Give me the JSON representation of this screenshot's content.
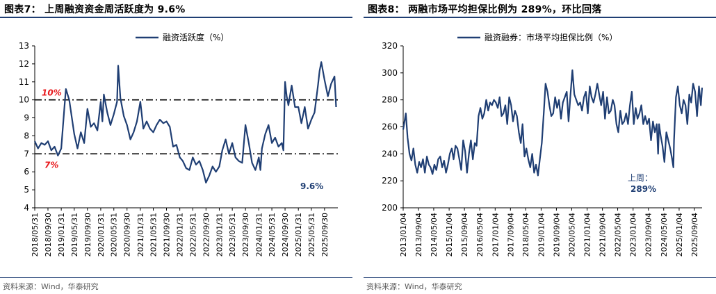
{
  "figures": [
    {
      "title": "图表7：  上周融资资金周活跃度为 9.6%",
      "source": "资料来源：Wind，华泰研究"
    },
    {
      "title": "图表8：  两融市场平均担保比例为 289%，环比回落",
      "source": "资料来源：Wind，华泰研究"
    }
  ],
  "chart_data": [
    {
      "type": "line",
      "title": "",
      "xlabel": "",
      "ylabel": "",
      "ylim": [
        4,
        13
      ],
      "y_ticks": [
        4,
        5,
        6,
        7,
        8,
        9,
        10,
        11,
        12,
        13
      ],
      "x_range": [
        "2018-05-31",
        "2026-01-31"
      ],
      "x_ticks": [
        "2018/05/31",
        "2018/09/30",
        "2019/01/31",
        "2019/05/31",
        "2019/09/30",
        "2020/01/31",
        "2020/05/31",
        "2020/09/30",
        "2021/01/31",
        "2021/05/31",
        "2021/09/30",
        "2022/01/31",
        "2022/05/31",
        "2022/09/30",
        "2023/01/31",
        "2023/05/31",
        "2023/09/30",
        "2024/01/31",
        "2024/05/31",
        "2024/09/30",
        "2025/01/31",
        "2025/05/31",
        "2025/09/30"
      ],
      "legend": "top-center",
      "grid": false,
      "line_color": "#1f3e73",
      "series": [
        {
          "name": "融资活跃度（%）",
          "x": [
            "2018-05-31",
            "2018-06-30",
            "2018-07-31",
            "2018-08-31",
            "2018-09-30",
            "2018-10-31",
            "2018-11-30",
            "2018-12-31",
            "2019-01-31",
            "2019-02-28",
            "2019-03-15",
            "2019-04-15",
            "2019-05-31",
            "2019-06-30",
            "2019-07-31",
            "2019-08-31",
            "2019-09-30",
            "2019-10-31",
            "2019-11-30",
            "2019-12-31",
            "2020-01-31",
            "2020-02-15",
            "2020-02-29",
            "2020-03-31",
            "2020-04-30",
            "2020-05-31",
            "2020-06-30",
            "2020-07-10",
            "2020-07-31",
            "2020-08-31",
            "2020-09-30",
            "2020-10-31",
            "2020-11-30",
            "2020-12-31",
            "2021-01-31",
            "2021-02-28",
            "2021-03-31",
            "2021-04-30",
            "2021-05-31",
            "2021-06-30",
            "2021-07-31",
            "2021-08-31",
            "2021-09-30",
            "2021-10-31",
            "2021-11-30",
            "2021-12-31",
            "2022-01-31",
            "2022-02-28",
            "2022-03-31",
            "2022-04-30",
            "2022-05-31",
            "2022-06-30",
            "2022-07-31",
            "2022-08-31",
            "2022-09-30",
            "2022-10-31",
            "2022-11-30",
            "2022-12-31",
            "2023-01-31",
            "2023-02-28",
            "2023-03-31",
            "2023-04-30",
            "2023-05-31",
            "2023-06-30",
            "2023-07-31",
            "2023-08-31",
            "2023-09-30",
            "2023-10-31",
            "2023-11-30",
            "2023-12-31",
            "2024-01-31",
            "2024-02-15",
            "2024-02-29",
            "2024-03-31",
            "2024-04-30",
            "2024-05-31",
            "2024-06-30",
            "2024-07-31",
            "2024-08-31",
            "2024-09-15",
            "2024-09-30",
            "2024-10-15",
            "2024-10-31",
            "2024-11-30",
            "2024-12-31",
            "2025-01-31",
            "2025-02-28",
            "2025-03-31",
            "2025-04-30",
            "2025-05-31",
            "2025-06-30",
            "2025-07-31",
            "2025-08-15",
            "2025-08-31",
            "2025-09-30",
            "2025-10-31",
            "2025-11-30",
            "2025-12-31",
            "2026-01-15"
          ],
          "values": [
            7.7,
            7.3,
            7.6,
            7.5,
            7.7,
            7.2,
            7.4,
            6.9,
            7.3,
            9.5,
            10.6,
            10.0,
            8.1,
            7.3,
            8.2,
            7.6,
            9.5,
            8.5,
            8.7,
            8.3,
            9.9,
            8.8,
            10.3,
            9.3,
            8.6,
            9.2,
            9.9,
            11.9,
            10.1,
            9.1,
            8.6,
            7.8,
            8.2,
            8.8,
            9.9,
            8.4,
            8.8,
            8.4,
            8.2,
            8.6,
            8.9,
            8.7,
            8.8,
            8.5,
            7.4,
            7.5,
            6.8,
            6.6,
            6.2,
            6.1,
            6.8,
            6.4,
            6.6,
            6.1,
            5.4,
            5.8,
            6.3,
            6.0,
            6.3,
            7.2,
            7.8,
            7.0,
            7.6,
            6.8,
            6.6,
            6.5,
            8.6,
            7.6,
            6.5,
            6.1,
            6.8,
            6.1,
            7.3,
            8.1,
            8.6,
            7.6,
            7.9,
            7.4,
            7.6,
            7.2,
            11.0,
            10.2,
            9.7,
            10.8,
            9.6,
            9.6,
            8.7,
            9.6,
            8.4,
            8.9,
            9.3,
            10.8,
            11.6,
            12.1,
            11.1,
            10.2,
            10.9,
            11.3,
            9.6
          ]
        }
      ],
      "reference_lines": [
        {
          "value": 10,
          "label": "10%"
        },
        {
          "value": 7,
          "label": "7%"
        }
      ],
      "annotations": [
        {
          "text": "9.6%"
        }
      ]
    },
    {
      "type": "line",
      "title": "",
      "xlabel": "",
      "ylabel": "",
      "ylim": [
        200,
        320
      ],
      "y_ticks": [
        200,
        220,
        240,
        260,
        280,
        300,
        320
      ],
      "x_range": [
        "2013-01-04",
        "2026-01-04"
      ],
      "x_ticks": [
        "2013/01/04",
        "2013/09/04",
        "2014/05/04",
        "2015/01/04",
        "2015/09/04",
        "2016/05/04",
        "2017/01/04",
        "2017/09/04",
        "2018/05/04",
        "2019/01/04",
        "2019/09/04",
        "2020/05/04",
        "2021/01/04",
        "2021/09/04",
        "2022/05/04",
        "2023/01/04",
        "2023/09/04",
        "2024/05/04",
        "2025/01/04",
        "2025/09/04"
      ],
      "legend": "top-center",
      "grid": false,
      "line_color": "#1f3e73",
      "series": [
        {
          "name": "融资融券：市场平均担保比例（%）",
          "x": [
            "2013-01-04",
            "2013-02-15",
            "2013-03-15",
            "2013-04-15",
            "2013-05-15",
            "2013-06-15",
            "2013-07-15",
            "2013-08-15",
            "2013-09-15",
            "2013-10-15",
            "2013-11-15",
            "2013-12-15",
            "2014-01-15",
            "2014-02-15",
            "2014-03-15",
            "2014-04-15",
            "2014-05-15",
            "2014-06-15",
            "2014-07-15",
            "2014-08-15",
            "2014-09-15",
            "2014-10-15",
            "2014-11-15",
            "2014-12-15",
            "2015-01-15",
            "2015-02-15",
            "2015-03-15",
            "2015-04-15",
            "2015-05-15",
            "2015-06-15",
            "2015-07-15",
            "2015-08-15",
            "2015-09-15",
            "2015-10-15",
            "2015-11-15",
            "2015-12-15",
            "2016-01-15",
            "2016-02-15",
            "2016-03-15",
            "2016-04-15",
            "2016-05-15",
            "2016-06-15",
            "2016-07-15",
            "2016-08-15",
            "2016-09-15",
            "2016-10-15",
            "2016-11-15",
            "2016-12-15",
            "2017-01-15",
            "2017-02-15",
            "2017-03-15",
            "2017-04-15",
            "2017-05-15",
            "2017-06-15",
            "2017-07-15",
            "2017-08-15",
            "2017-09-15",
            "2017-10-15",
            "2017-11-15",
            "2017-12-15",
            "2018-01-15",
            "2018-02-15",
            "2018-03-15",
            "2018-04-15",
            "2018-05-15",
            "2018-06-15",
            "2018-07-15",
            "2018-08-15",
            "2018-09-15",
            "2018-10-15",
            "2018-11-15",
            "2018-12-15",
            "2019-01-15",
            "2019-02-15",
            "2019-03-15",
            "2019-04-15",
            "2019-05-15",
            "2019-06-15",
            "2019-07-15",
            "2019-08-15",
            "2019-09-15",
            "2019-10-15",
            "2019-11-15",
            "2019-12-15",
            "2020-01-15",
            "2020-02-15",
            "2020-03-15",
            "2020-04-15",
            "2020-05-15",
            "2020-06-15",
            "2020-07-15",
            "2020-08-15",
            "2020-09-15",
            "2020-10-15",
            "2020-11-15",
            "2020-12-15",
            "2021-01-15",
            "2021-02-15",
            "2021-03-15",
            "2021-04-15",
            "2021-05-15",
            "2021-06-15",
            "2021-07-15",
            "2021-08-15",
            "2021-09-15",
            "2021-10-15",
            "2021-11-15",
            "2021-12-15",
            "2022-01-15",
            "2022-02-15",
            "2022-03-15",
            "2022-04-15",
            "2022-05-15",
            "2022-06-15",
            "2022-07-15",
            "2022-08-15",
            "2022-09-15",
            "2022-10-15",
            "2022-11-15",
            "2022-12-15",
            "2023-01-15",
            "2023-02-15",
            "2023-03-15",
            "2023-04-15",
            "2023-05-15",
            "2023-06-15",
            "2023-07-15",
            "2023-08-15",
            "2023-09-15",
            "2023-10-15",
            "2023-11-15",
            "2023-12-15",
            "2024-01-15",
            "2024-02-05",
            "2024-02-20",
            "2024-03-15",
            "2024-04-15",
            "2024-05-15",
            "2024-06-15",
            "2024-07-15",
            "2024-08-15",
            "2024-09-15",
            "2024-10-05",
            "2024-10-15",
            "2024-11-15",
            "2024-12-15",
            "2025-01-15",
            "2025-02-15",
            "2025-03-15",
            "2025-04-15",
            "2025-05-15",
            "2025-06-15",
            "2025-07-15",
            "2025-08-15",
            "2025-09-15",
            "2025-10-15",
            "2025-11-15",
            "2025-12-15",
            "2026-01-04"
          ],
          "values": [
            258,
            270,
            252,
            240,
            235,
            244,
            232,
            226,
            234,
            230,
            236,
            226,
            238,
            232,
            230,
            225,
            232,
            228,
            236,
            238,
            230,
            235,
            226,
            232,
            240,
            244,
            236,
            246,
            244,
            236,
            228,
            250,
            242,
            226,
            240,
            250,
            236,
            248,
            246,
            268,
            274,
            266,
            270,
            280,
            272,
            278,
            276,
            280,
            278,
            274,
            282,
            268,
            270,
            276,
            262,
            282,
            276,
            264,
            272,
            268,
            256,
            248,
            262,
            238,
            244,
            236,
            230,
            240,
            226,
            232,
            224,
            236,
            248,
            270,
            292,
            286,
            276,
            268,
            270,
            282,
            274,
            280,
            266,
            278,
            282,
            286,
            264,
            284,
            302,
            284,
            280,
            276,
            278,
            272,
            282,
            286,
            270,
            290,
            282,
            278,
            284,
            292,
            284,
            276,
            286,
            266,
            282,
            270,
            272,
            280,
            276,
            262,
            256,
            272,
            262,
            264,
            270,
            262,
            276,
            286,
            262,
            274,
            266,
            270,
            276,
            262,
            268,
            262,
            266,
            250,
            264,
            256,
            262,
            240,
            262,
            254,
            246,
            234,
            256,
            250,
            244,
            236,
            230,
            250,
            282,
            290,
            276,
            270,
            280,
            276,
            262,
            284,
            278,
            292,
            286,
            268,
            290,
            276,
            289
          ]
        }
      ],
      "annotations": [
        {
          "text": "上周："
        },
        {
          "text": "289%"
        }
      ]
    }
  ]
}
